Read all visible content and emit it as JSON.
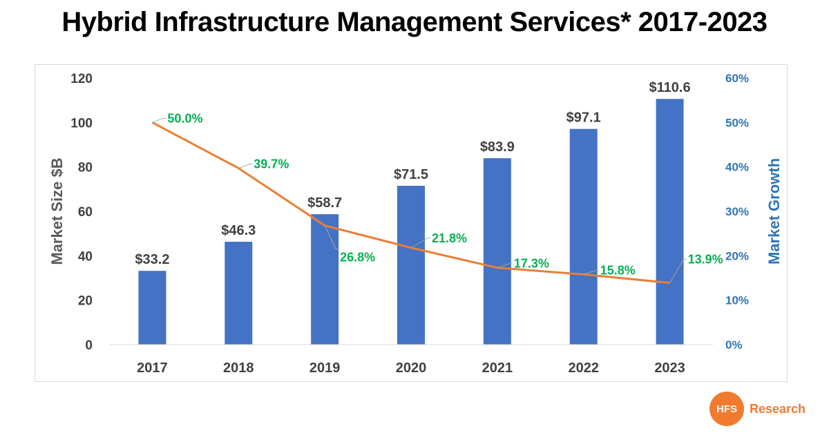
{
  "title": "Hybrid Infrastructure Management Services* 2017-2023",
  "logo": {
    "mark": "HFS",
    "text": "Research"
  },
  "chart_data": {
    "type": "bar",
    "categories": [
      "2017",
      "2018",
      "2019",
      "2020",
      "2021",
      "2022",
      "2023"
    ],
    "series": [
      {
        "axis": "left",
        "type": "bar",
        "values": [
          33.2,
          46.3,
          58.7,
          71.5,
          83.9,
          97.1,
          110.6
        ],
        "labels": [
          "$33.2",
          "$46.3",
          "$58.7",
          "$71.5",
          "$83.9",
          "$97.1",
          "$110.6"
        ],
        "color": "#4472c4"
      },
      {
        "axis": "right",
        "type": "line",
        "values": [
          50.0,
          39.7,
          26.8,
          21.8,
          17.3,
          15.8,
          13.9
        ],
        "labels": [
          "50.0%",
          "39.7%",
          "26.8%",
          "21.8%",
          "17.3%",
          "15.8%",
          "13.9%"
        ],
        "color": "#ed7d31",
        "label_color": "#00b050"
      }
    ],
    "ylabel": "Market Size $B",
    "y2label": "Market Growth",
    "ylim": [
      0,
      120
    ],
    "y2lim": [
      0,
      60
    ],
    "yticks": [
      "0",
      "20",
      "40",
      "60",
      "80",
      "100",
      "120"
    ],
    "y2ticks": [
      "0%",
      "10%",
      "20%",
      "30%",
      "40%",
      "50%",
      "60%"
    ],
    "y2_color": "#2e75b6",
    "grid": false,
    "legend": "none"
  }
}
